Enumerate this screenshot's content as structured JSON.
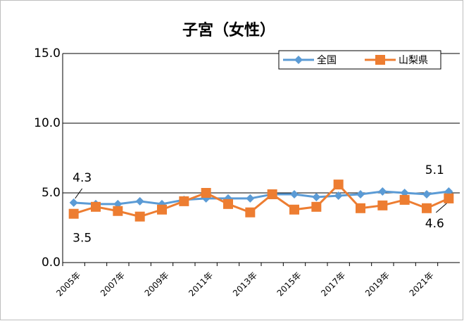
{
  "chart_data": {
    "type": "line",
    "title": "子宮（女性）",
    "categories": [
      "2005年",
      null,
      "2007年",
      null,
      "2009年",
      null,
      "2011年",
      null,
      "2013年",
      null,
      "2015年",
      null,
      "2017年",
      null,
      "2019年",
      null,
      "2021年",
      null
    ],
    "series": [
      {
        "name": "全国",
        "color": "#5b9bd5",
        "marker": "diamond",
        "values": [
          4.3,
          4.2,
          4.2,
          4.4,
          4.2,
          4.5,
          4.6,
          4.6,
          4.6,
          4.9,
          4.9,
          4.7,
          4.8,
          4.9,
          5.1,
          5.0,
          4.9,
          5.1
        ]
      },
      {
        "name": "山梨県",
        "color": "#ed7d31",
        "marker": "square",
        "values": [
          3.5,
          4.0,
          3.7,
          3.3,
          3.8,
          4.4,
          5.0,
          4.2,
          3.6,
          4.9,
          3.8,
          4.0,
          5.6,
          3.9,
          4.1,
          4.5,
          3.9,
          4.6
        ]
      }
    ],
    "ylim": [
      0,
      15
    ],
    "yticks": [
      {
        "value": 0,
        "label": "0.0"
      },
      {
        "value": 5,
        "label": "5.0"
      },
      {
        "value": 10,
        "label": "10.0"
      },
      {
        "value": 15,
        "label": "15.0"
      }
    ],
    "grid": true,
    "legend": "top-right"
  }
}
